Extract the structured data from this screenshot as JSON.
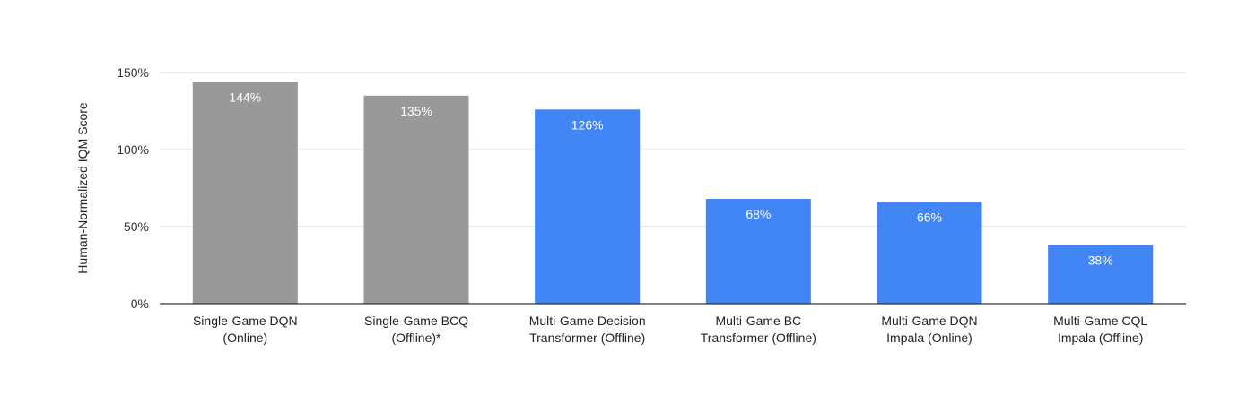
{
  "chart_data": {
    "type": "bar",
    "title": "",
    "xlabel": "",
    "ylabel": "Human-Normalized IQM Score",
    "ylim": [
      0,
      150
    ],
    "yticks": [
      0,
      50,
      100,
      150
    ],
    "ytick_labels": [
      "0%",
      "50%",
      "100%",
      "150%"
    ],
    "grid": true,
    "categories": [
      [
        "Single-Game DQN",
        "(Online)"
      ],
      [
        "Single-Game BCQ",
        "(Offline)*"
      ],
      [
        "Multi-Game Decision",
        "Transformer (Offline)"
      ],
      [
        "Multi-Game BC",
        "Transformer (Offline)"
      ],
      [
        "Multi-Game DQN",
        "Impala (Online)"
      ],
      [
        "Multi-Game CQL",
        "Impala (Offline)"
      ]
    ],
    "values": [
      144,
      135,
      126,
      68,
      66,
      38
    ],
    "data_labels": [
      "144%",
      "135%",
      "126%",
      "68%",
      "66%",
      "38%"
    ],
    "bar_colors": [
      "#999999",
      "#999999",
      "#4285f4",
      "#4285f4",
      "#4285f4",
      "#4285f4"
    ],
    "colors": {
      "single_game": "#999999",
      "multi_game": "#4285f4",
      "grid": "#d9d9d9",
      "axis": "#333333"
    }
  }
}
